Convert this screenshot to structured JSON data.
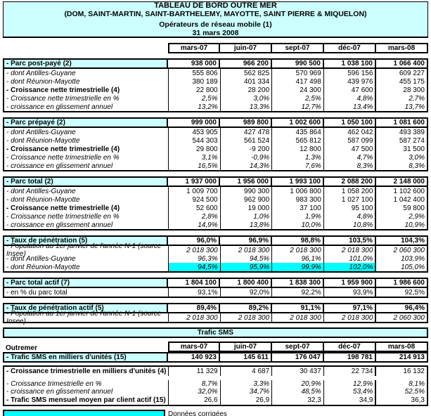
{
  "header": {
    "line1": "TABLEAU DE BORD OUTRE MER",
    "line2": "(DOM, SAINT-MARTIN, SAINT-BARTHELEMY, MAYOTTE, SAINT PIERRE & MIQUELON)",
    "line3": "Opérateurs de réseau mobile (1)",
    "line4": "31 mars 2008"
  },
  "columns": [
    "mars-07",
    "juin-07",
    "sept-07",
    "déc-07",
    "mars-08"
  ],
  "colors": {
    "light_cyan": "#CCFFFF",
    "bright_cyan": "#00FFFF",
    "border": "#000000"
  },
  "sections": [
    {
      "head": {
        "label": "- Parc post-payé (2)",
        "values": [
          "938 000",
          "966 200",
          "990 500",
          "1 038 100",
          "1 066 400"
        ]
      },
      "rows": [
        {
          "label": "- dont Antilles-Guyane",
          "ls": "i",
          "vs": "r",
          "values": [
            "555 806",
            "562 825",
            "570 969",
            "596 156",
            "609 227"
          ]
        },
        {
          "label": "- dont Réunion-Mayotte",
          "ls": "i",
          "vs": "r",
          "values": [
            "380 189",
            "401 334",
            "417 498",
            "439 976",
            "455 175"
          ]
        },
        {
          "label": "- Croissance nette trimestrielle (4)",
          "ls": "b",
          "vs": "r",
          "values": [
            "22 800",
            "28 200",
            "24 300",
            "47 600",
            "28 300"
          ]
        },
        {
          "label": "- Croissance nette trimestrielle en %",
          "ls": "i",
          "vs": "i",
          "values": [
            "2,5%",
            "3,0%",
            "2,5%",
            "4,8%",
            "2,7%"
          ]
        },
        {
          "label": "- croissance en glissement annuel",
          "ls": "i",
          "vs": "i",
          "values": [
            "13,2%",
            "13,3%",
            "12,7%",
            "13,4%",
            "13,7%"
          ]
        }
      ]
    },
    {
      "head": {
        "label": "- Parc prépayé (2)",
        "values": [
          "999 000",
          "989 800",
          "1 002 600",
          "1 050 100",
          "1 081 600"
        ]
      },
      "rows": [
        {
          "label": "- dont Antilles-Guyane",
          "ls": "i",
          "vs": "r",
          "values": [
            "453 905",
            "427 478",
            "435 864",
            "462 042",
            "493 389"
          ]
        },
        {
          "label": "- dont Réunion-Mayotte",
          "ls": "i",
          "vs": "r",
          "values": [
            "544 303",
            "561 524",
            "565 812",
            "587 099",
            "587 274"
          ]
        },
        {
          "label": "- Croissance nette trimestrielle (4)",
          "ls": "b",
          "vs": "r",
          "values": [
            "29 800",
            "-9 200",
            "12 800",
            "47 500",
            "31 500"
          ]
        },
        {
          "label": "- Croissance nette trimestrielle en %",
          "ls": "i",
          "vs": "i",
          "values": [
            "3,1%",
            "-0,9%",
            "1,3%",
            "4,7%",
            "3,0%"
          ]
        },
        {
          "label": "- croissance en glissement annuel",
          "ls": "i",
          "vs": "i",
          "values": [
            "16,5%",
            "14,3%",
            "7,6%",
            "8,3%",
            "8,3%"
          ]
        }
      ]
    },
    {
      "head": {
        "label": "- Parc total (2)",
        "values": [
          "1 937 000",
          "1 956 000",
          "1 993 100",
          "2 088 200",
          "2 148 000"
        ]
      },
      "rows": [
        {
          "label": "- dont Antilles-Guyane",
          "ls": "i",
          "vs": "r",
          "values": [
            "1 009 700",
            "990 300",
            "1 006 800",
            "1 058 200",
            "1 102 600"
          ]
        },
        {
          "label": "- dont Réunion-Mayotte",
          "ls": "i",
          "vs": "r",
          "values": [
            "924 500",
            "962 900",
            "983 300",
            "1 027 100",
            "1 042 400"
          ]
        },
        {
          "label": "- Croissance nette trimestrielle (4)",
          "ls": "b",
          "vs": "r",
          "values": [
            "52 600",
            "19 000",
            "37 100",
            "95 100",
            "59 800"
          ]
        },
        {
          "label": "- Croissance nette trimestrielle en %",
          "ls": "i",
          "vs": "i",
          "values": [
            "2,8%",
            "1,0%",
            "1,9%",
            "4,8%",
            "2,9%"
          ]
        },
        {
          "label": "- croissance en glissement annuel",
          "ls": "i",
          "vs": "i",
          "values": [
            "14,9%",
            "13,8%",
            "10,0%",
            "10,8%",
            "10,9%"
          ]
        }
      ]
    },
    {
      "head": {
        "label": "- Taux de pénétration (5)",
        "values": [
          "96,0%",
          "96,9%",
          "98,8%",
          "103,5%",
          "104,3%"
        ]
      },
      "rows": [
        {
          "label": "- Population au 1er janvier de l'année N-1 (source Insee)",
          "ls": "i",
          "vs": "i",
          "values": [
            "2 018 300",
            "2 018 300",
            "2 018 300",
            "2 018 300",
            "2 060 300"
          ]
        },
        {
          "label": "- dont Antilles-Guyane",
          "ls": "i",
          "vs": "i",
          "values": [
            "96,3%",
            "94,5%",
            "96,1%",
            "101,0%",
            "103,9%"
          ]
        },
        {
          "label": "- dont Réunion-Mayotte",
          "ls": "i",
          "vs": "i",
          "values": [
            "94,5%",
            "95,9%",
            "99,9%",
            "102,0%",
            "105,0%"
          ],
          "hl": [
            1,
            1,
            1,
            1,
            0
          ]
        }
      ]
    },
    {
      "head": {
        "label": "- Parc total actif (7)",
        "values": [
          "1 804 100",
          "1 800 400",
          "1 838 300",
          "1 959 900",
          "1 986 600"
        ]
      },
      "rows": [
        {
          "label": "- en % du parc total",
          "ls": "r",
          "vs": "r",
          "values": [
            "93,1%",
            "92,0%",
            "92,2%",
            "93,9%",
            "92,5%"
          ]
        }
      ]
    },
    {
      "head": {
        "label": "- Taux de pénétration actif (5)",
        "values": [
          "89,4%",
          "89,2%",
          "91,1%",
          "97,1%",
          "96,4%"
        ]
      },
      "rows": [
        {
          "label": "- Population au 1er janvier de l'année N-1 (source Insee)",
          "ls": "i",
          "vs": "i",
          "values": [
            "2 018 300",
            "2 018 300",
            "2 018 300",
            "2 018 300",
            "2 060 300"
          ]
        }
      ]
    }
  ],
  "sms": {
    "banner": "Trafic SMS",
    "region_label": "Outremer",
    "head": {
      "label": "- Trafic SMS en milliers d'unités (15)",
      "values": [
        "140 923",
        "145 611",
        "176 047",
        "198 781",
        "214 913"
      ]
    },
    "rows": [
      {
        "label": "- Croissance trimestrielle en milliers d'unités (4)",
        "ls": "b",
        "vs": "r",
        "cls": "gap-after",
        "values": [
          "11 329",
          "4 687",
          "30 437",
          "22 734",
          "16 132"
        ]
      },
      {
        "label": "- Croissance trimestrielle en %",
        "ls": "i",
        "vs": "i",
        "values": [
          "8,7%",
          "3,3%",
          "20,9%",
          "12,9%",
          "8,1%"
        ]
      },
      {
        "label": "- croissance en glissement annuel",
        "ls": "i",
        "vs": "i",
        "values": [
          "32,0%",
          "34,7%",
          "48,5%",
          "53,4%",
          "52,5%"
        ]
      },
      {
        "label": "- Trafic SMS mensuel moyen par client actif (15)",
        "ls": "b",
        "vs": "r",
        "values": [
          "26,6",
          "26,9",
          "32,3",
          "34,9",
          "36,3"
        ]
      }
    ]
  },
  "legend": {
    "label": "Données corrigées"
  }
}
